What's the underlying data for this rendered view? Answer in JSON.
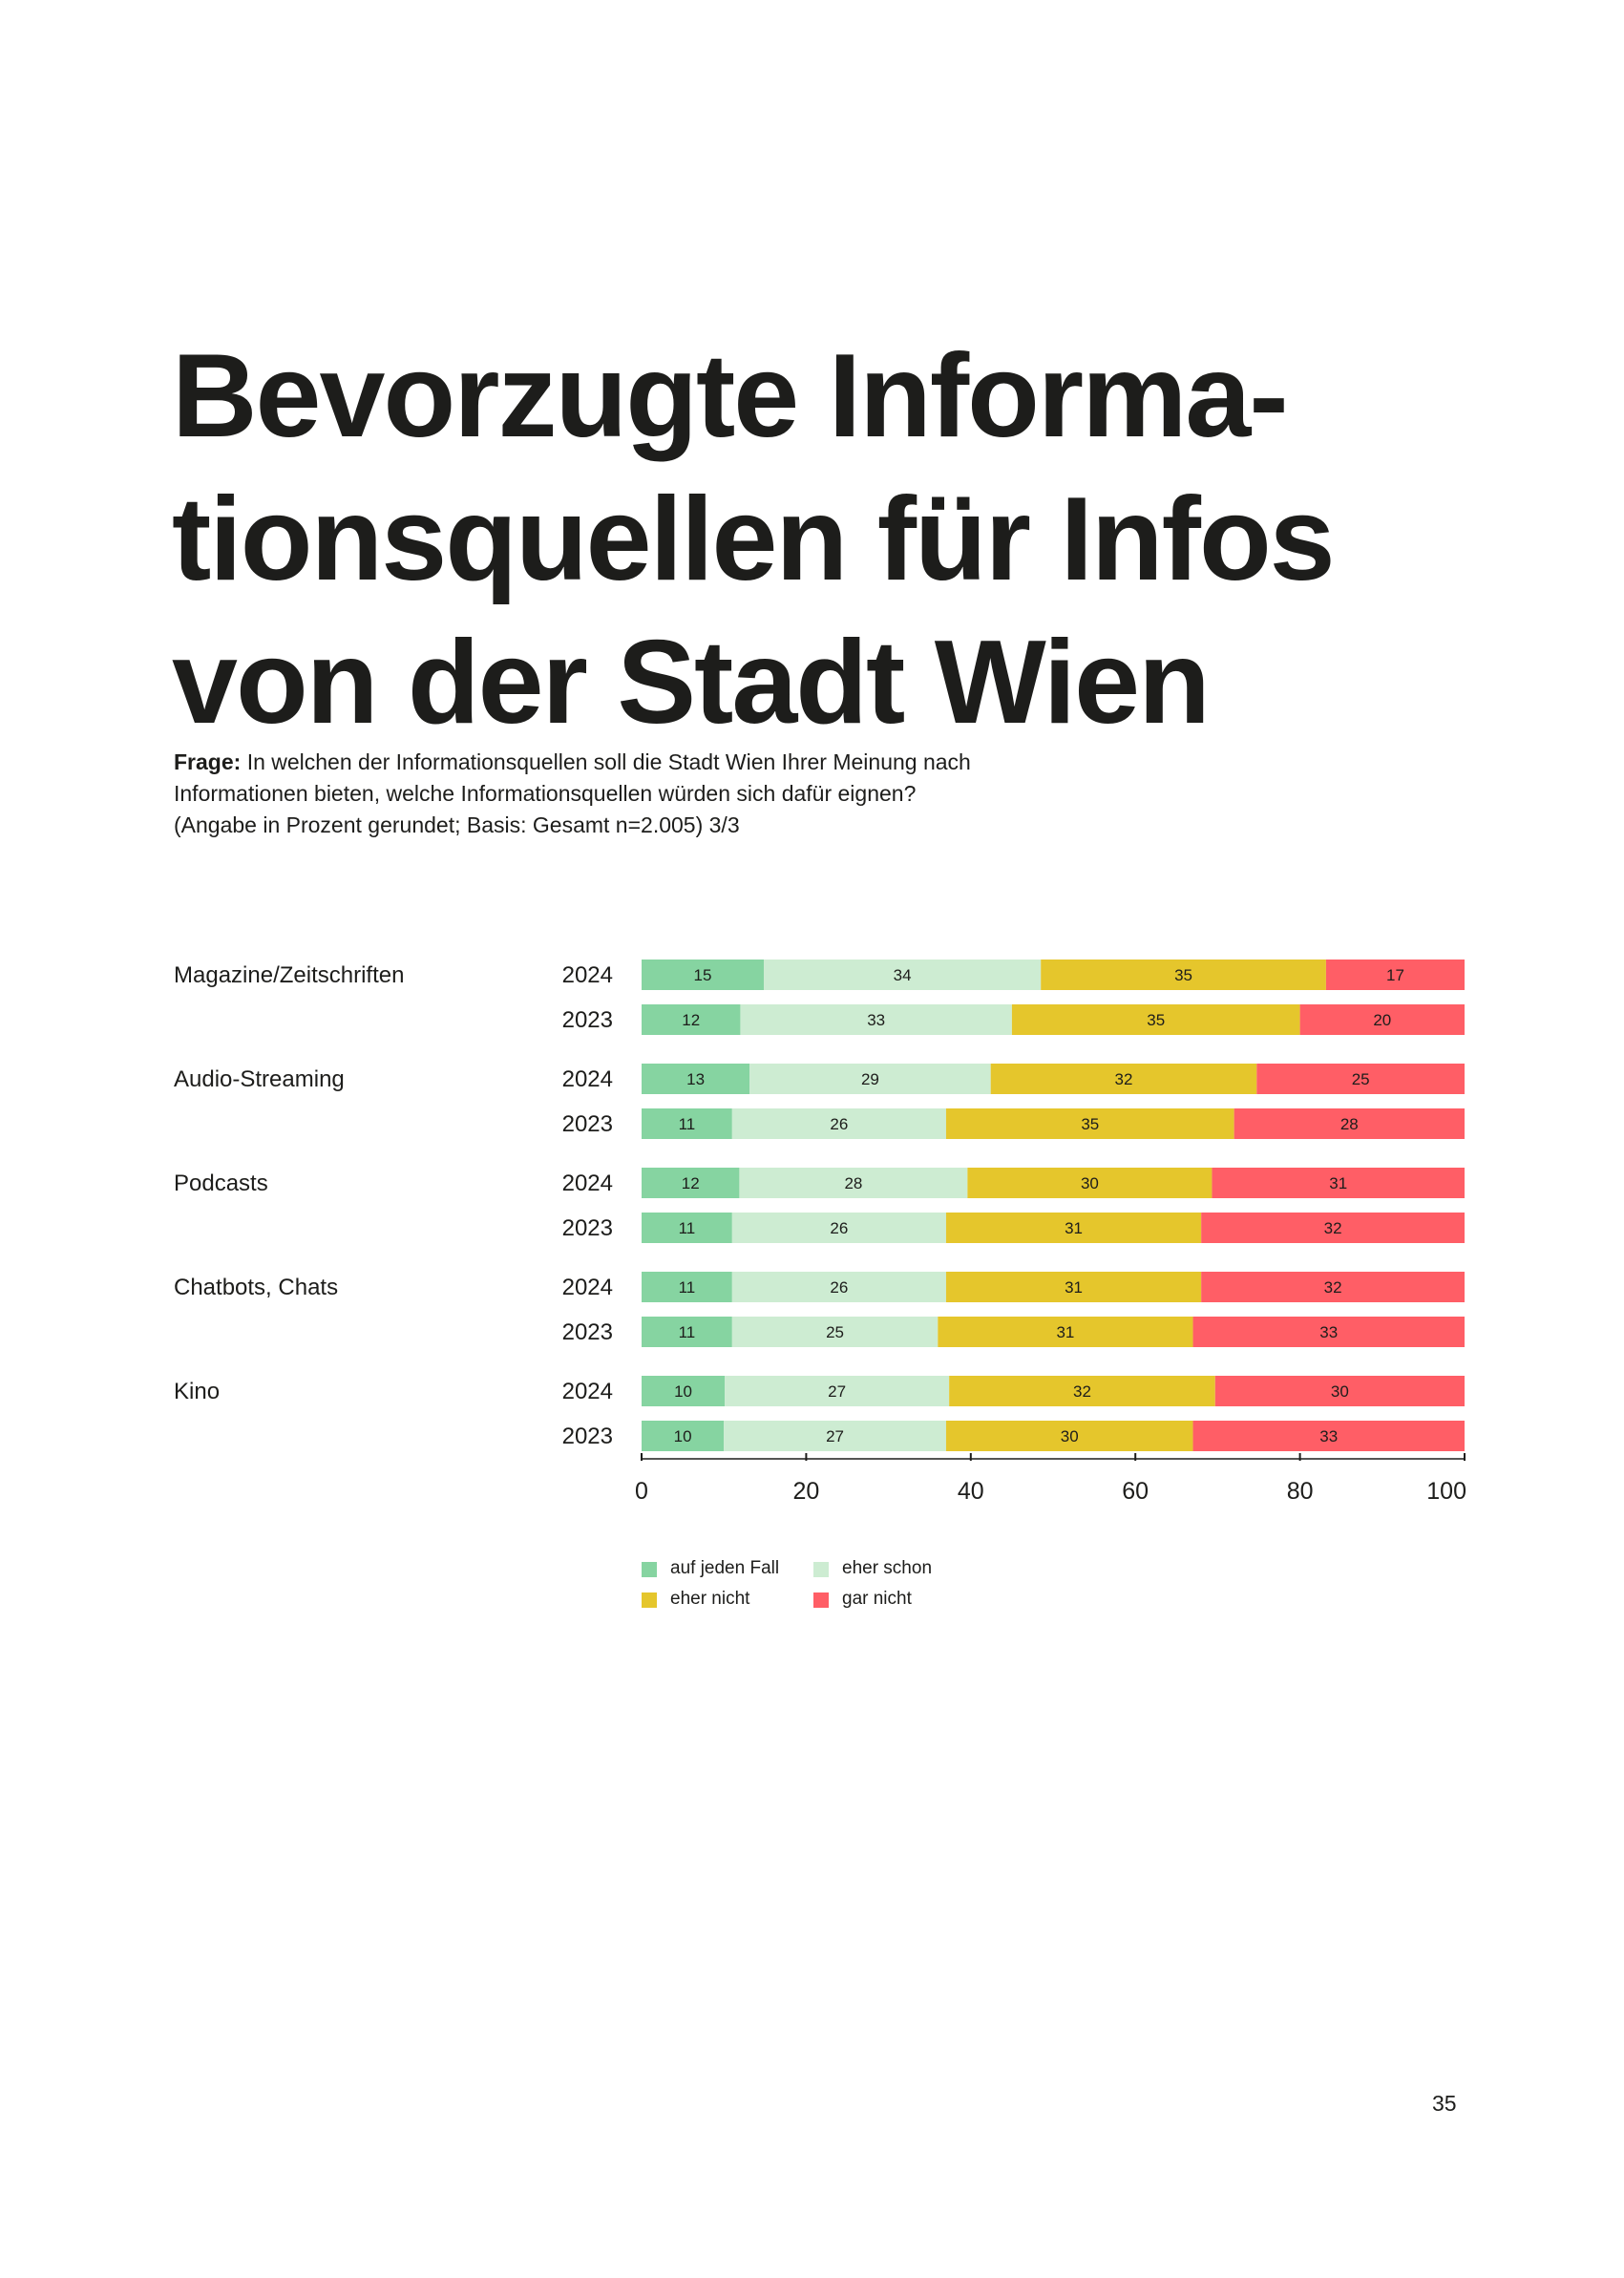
{
  "title_lines": [
    "Bevorzugte Informa-",
    "tionsquellen für Infos",
    "von der Stadt Wien"
  ],
  "question": {
    "label": "Frage:",
    "line1": "In welchen der Informationsquellen soll die Stadt Wien Ihrer Meinung nach",
    "line2": "Informationen bieten, welche Informationsquellen würden sich dafür eignen?",
    "line3": "(Angabe in Prozent gerundet; Basis: Gesamt n=2.005) 3/3"
  },
  "colors": {
    "auf_jeden_fall": "#86d4a1",
    "eher_schon": "#cdecd2",
    "eher_nicht": "#e5c62c",
    "gar_nicht": "#ff5e66",
    "text": "#1d1d1b"
  },
  "chart_data": {
    "type": "bar",
    "orientation": "horizontal-stacked",
    "xlim": [
      0,
      100
    ],
    "x_ticks": [
      0,
      20,
      40,
      60,
      80,
      100
    ],
    "series_names": [
      "auf jeden Fall",
      "eher schon",
      "eher nicht",
      "gar nicht"
    ],
    "groups": [
      {
        "name": "Magazine/Zeitschriften",
        "rows": [
          {
            "year": "2024",
            "values": [
              15,
              34,
              35,
              17
            ]
          },
          {
            "year": "2023",
            "values": [
              12,
              33,
              35,
              20
            ]
          }
        ]
      },
      {
        "name": "Audio-Streaming",
        "rows": [
          {
            "year": "2024",
            "values": [
              13,
              29,
              32,
              25
            ]
          },
          {
            "year": "2023",
            "values": [
              11,
              26,
              35,
              28
            ]
          }
        ]
      },
      {
        "name": "Podcasts",
        "rows": [
          {
            "year": "2024",
            "values": [
              12,
              28,
              30,
              31
            ]
          },
          {
            "year": "2023",
            "values": [
              11,
              26,
              31,
              32
            ]
          }
        ]
      },
      {
        "name": "Chatbots, Chats",
        "rows": [
          {
            "year": "2024",
            "values": [
              11,
              26,
              31,
              32
            ]
          },
          {
            "year": "2023",
            "values": [
              11,
              25,
              31,
              33
            ]
          }
        ]
      },
      {
        "name": "Kino",
        "rows": [
          {
            "year": "2024",
            "values": [
              10,
              27,
              32,
              30
            ]
          },
          {
            "year": "2023",
            "values": [
              10,
              27,
              30,
              33
            ]
          }
        ]
      }
    ]
  },
  "legend": [
    {
      "label": "auf jeden Fall",
      "color_key": "auf_jeden_fall"
    },
    {
      "label": "eher schon",
      "color_key": "eher_schon"
    },
    {
      "label": "eher nicht",
      "color_key": "eher_nicht"
    },
    {
      "label": "gar nicht",
      "color_key": "gar_nicht"
    }
  ],
  "page_number": "35"
}
